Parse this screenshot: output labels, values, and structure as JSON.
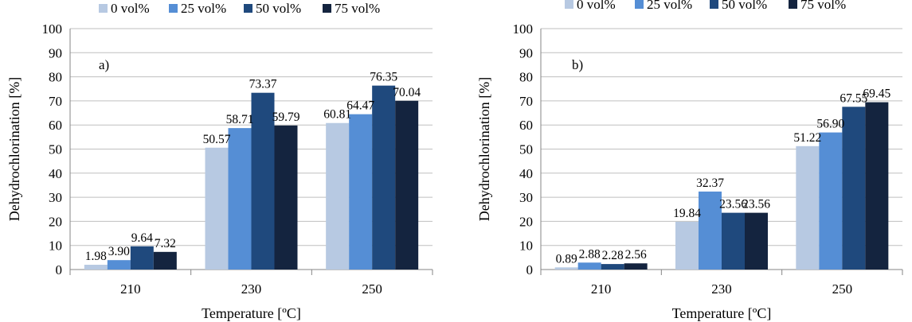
{
  "chart_data": [
    {
      "type": "bar",
      "panel_label": "a)",
      "categories": [
        "210",
        "230",
        "250"
      ],
      "series": [
        {
          "name": "0 vol%",
          "values": [
            1.98,
            50.57,
            60.81
          ],
          "labels": [
            "1.98",
            "50.57",
            "60.81"
          ],
          "color": "#B7C9E2"
        },
        {
          "name": "25 vol%",
          "values": [
            3.9,
            58.71,
            64.47
          ],
          "labels": [
            "3.90",
            "58.71",
            "64.47"
          ],
          "color": "#558ED5"
        },
        {
          "name": "50 vol%",
          "values": [
            9.64,
            73.37,
            76.35
          ],
          "labels": [
            "9.64",
            "73.37",
            "76.35"
          ],
          "color": "#1F497D"
        },
        {
          "name": "75 vol%",
          "values": [
            7.32,
            59.79,
            70.04
          ],
          "labels": [
            "7.32",
            "59.79",
            "70.04"
          ],
          "color": "#14243F"
        }
      ],
      "xlabel": "Temperature [ºC]",
      "ylabel": "Dehydrochlorination [%]",
      "ylim": [
        0,
        100
      ],
      "yticks": [
        "0",
        "10",
        "20",
        "30",
        "40",
        "50",
        "60",
        "70",
        "80",
        "90",
        "100"
      ],
      "grid": true,
      "legend": "top"
    },
    {
      "type": "bar",
      "panel_label": "b)",
      "categories": [
        "210",
        "230",
        "250"
      ],
      "series": [
        {
          "name": "0 vol%",
          "values": [
            0.89,
            19.84,
            51.22
          ],
          "labels": [
            "0.89",
            "19.84",
            "51.22"
          ],
          "color": "#B7C9E2"
        },
        {
          "name": "25 vol%",
          "values": [
            2.88,
            32.37,
            56.9
          ],
          "labels": [
            "2.88",
            "32.37",
            "56.90"
          ],
          "color": "#558ED5"
        },
        {
          "name": "50 vol%",
          "values": [
            2.28,
            23.56,
            67.55
          ],
          "labels": [
            "2.28",
            "23.56",
            "67.55"
          ],
          "color": "#1F497D"
        },
        {
          "name": "75 vol%",
          "values": [
            2.56,
            23.56,
            69.45
          ],
          "labels": [
            "2.56",
            "23.56",
            "69.45"
          ],
          "color": "#14243F"
        }
      ],
      "xlabel": "Temperature [ºC]",
      "ylabel": "Dehydrochlorination [%]",
      "ylim": [
        0,
        100
      ],
      "yticks": [
        "0",
        "10",
        "20",
        "30",
        "40",
        "50",
        "60",
        "70",
        "80",
        "90",
        "100"
      ],
      "grid": true,
      "legend": "top"
    }
  ]
}
